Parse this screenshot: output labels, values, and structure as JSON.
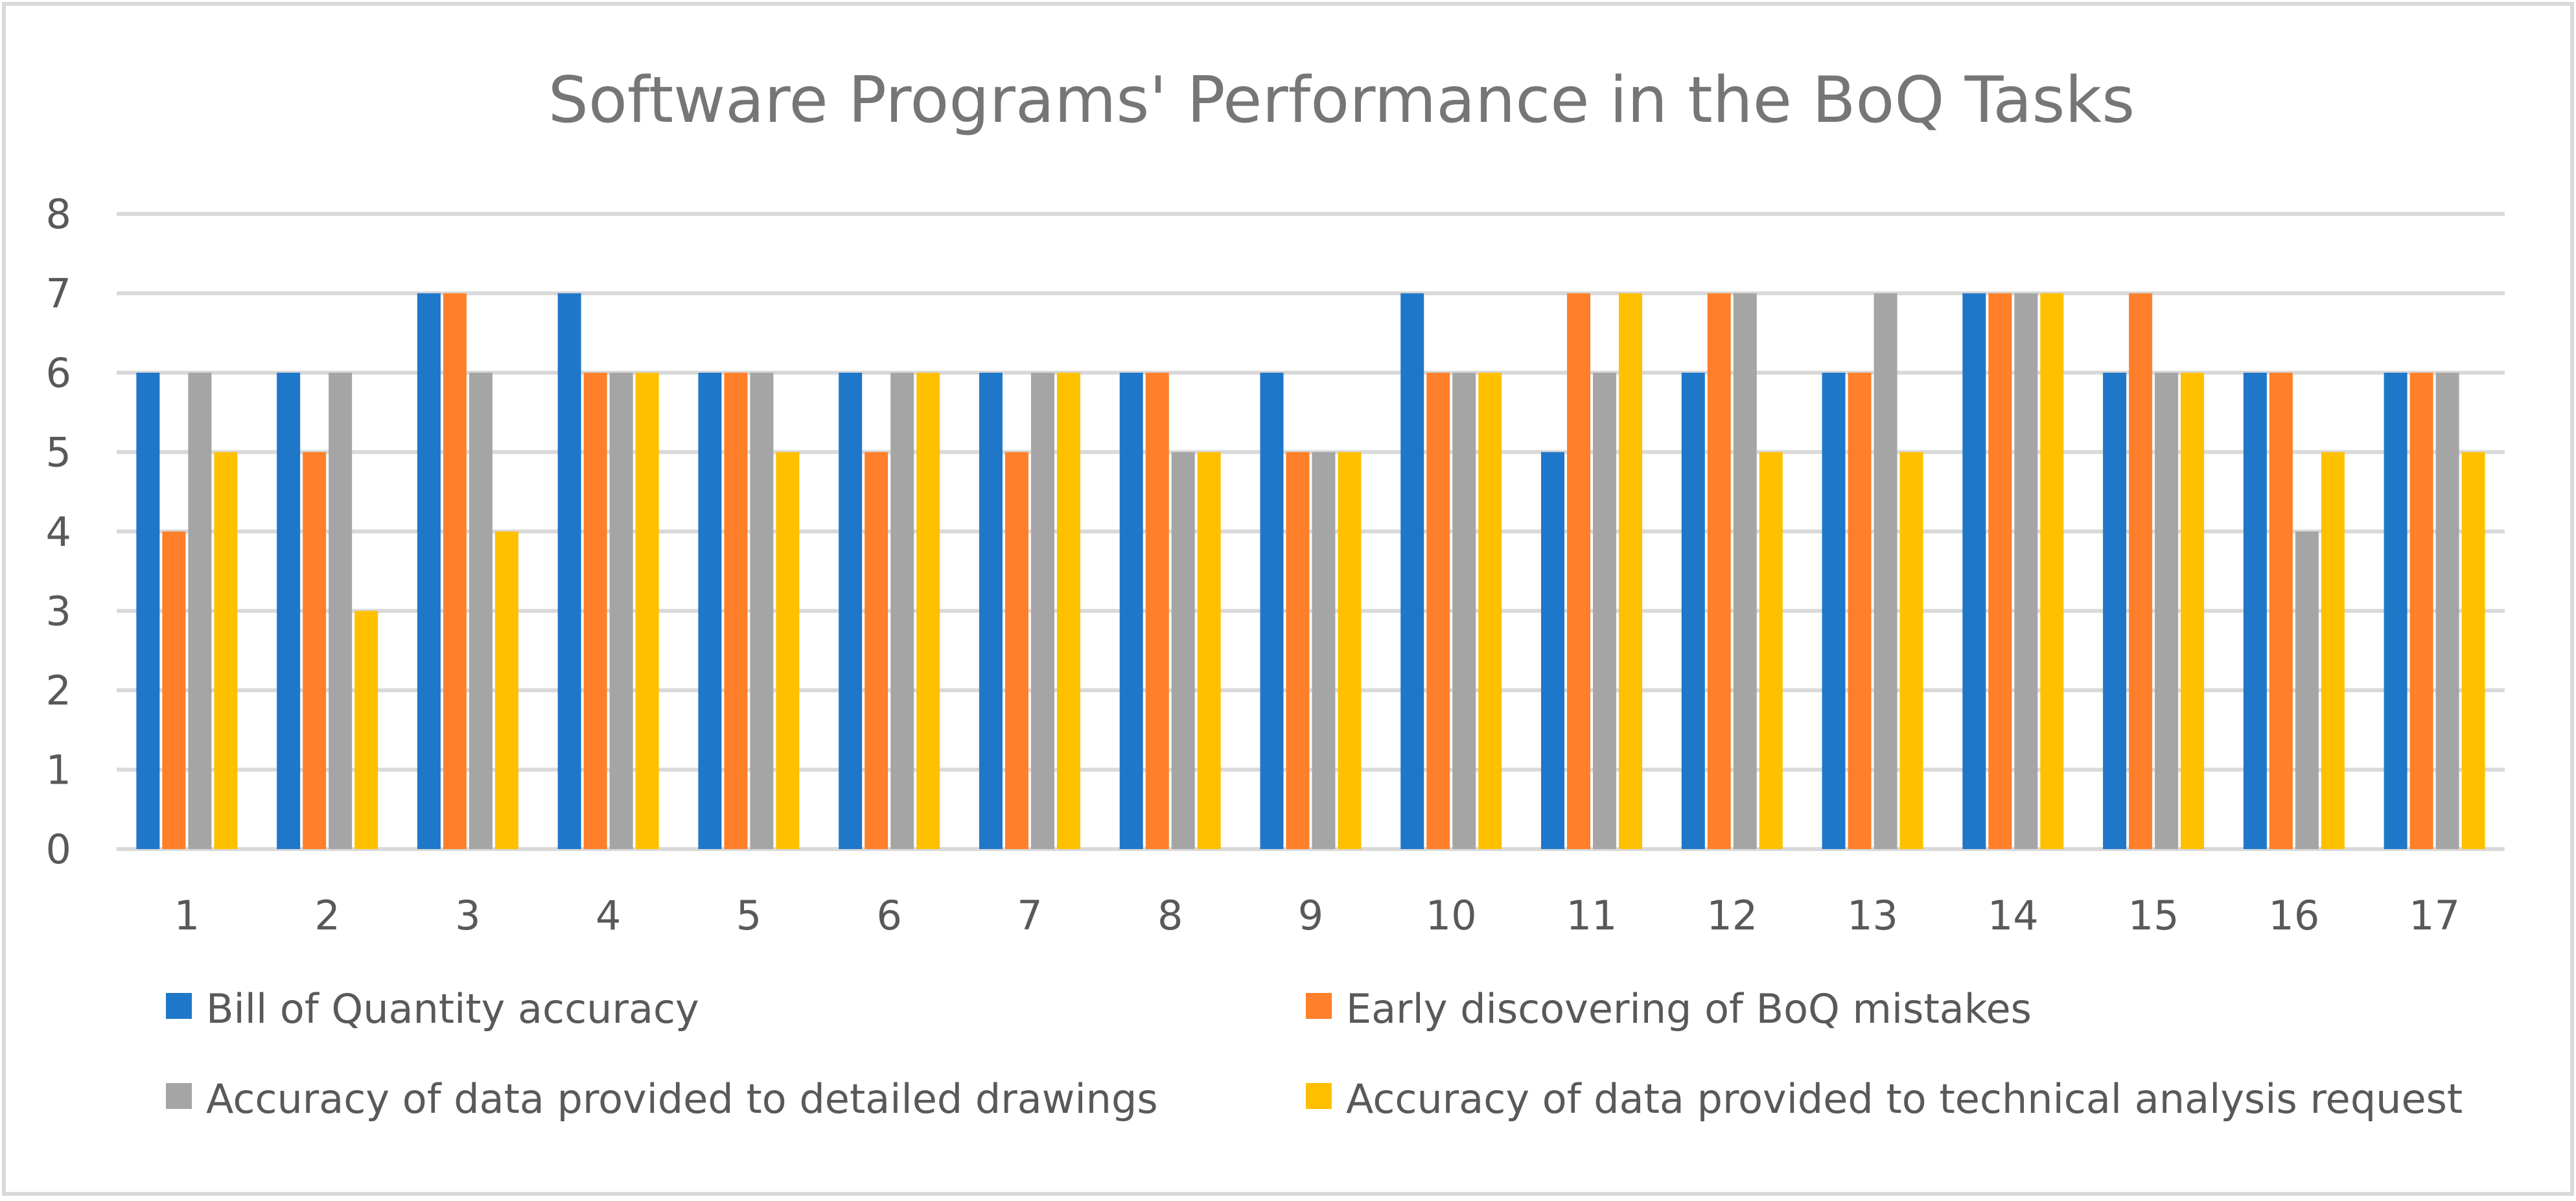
{
  "chart_data": {
    "type": "bar",
    "title": "Software Programs' Performance in the BoQ Tasks",
    "xlabel": "",
    "ylabel": "",
    "ylim": [
      0,
      8
    ],
    "yticks": [
      "0",
      "1",
      "2",
      "3",
      "4",
      "5",
      "6",
      "7",
      "8"
    ],
    "grid": true,
    "legend_position": "bottom",
    "categories": [
      "1",
      "2",
      "3",
      "4",
      "5",
      "6",
      "7",
      "8",
      "9",
      "10",
      "11",
      "12",
      "13",
      "14",
      "15",
      "16",
      "17"
    ],
    "series": [
      {
        "name": "Bill of Quantity accuracy",
        "color": "#1f77c9",
        "values": [
          6,
          6,
          7,
          7,
          6,
          6,
          6,
          6,
          6,
          7,
          5,
          6,
          6,
          7,
          6,
          6,
          6
        ]
      },
      {
        "name": "Early discovering of BoQ mistakes",
        "color": "#ff7f2a",
        "values": [
          4,
          5,
          7,
          6,
          6,
          5,
          5,
          6,
          5,
          6,
          7,
          7,
          6,
          7,
          7,
          6,
          6
        ]
      },
      {
        "name": "Accuracy of data provided to detailed drawings",
        "color": "#a5a5a5",
        "values": [
          6,
          6,
          6,
          6,
          6,
          6,
          6,
          5,
          5,
          6,
          6,
          7,
          7,
          7,
          6,
          4,
          6
        ]
      },
      {
        "name": "Accuracy of data provided to technical analysis request",
        "color": "#ffc000",
        "values": [
          5,
          3,
          4,
          6,
          5,
          6,
          6,
          5,
          5,
          6,
          7,
          5,
          5,
          7,
          6,
          5,
          5
        ]
      }
    ]
  }
}
